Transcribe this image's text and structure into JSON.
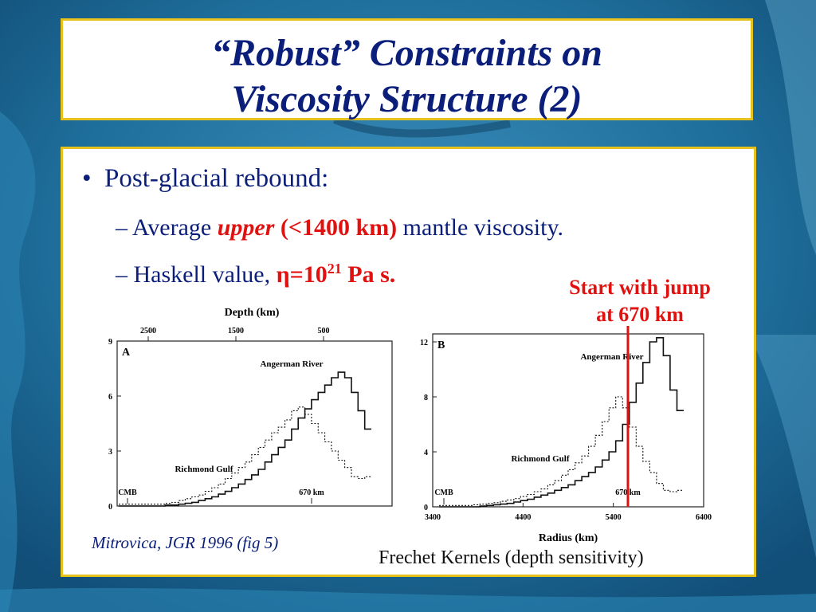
{
  "slide": {
    "title_line1": "“Robust” Constraints on",
    "title_line2": "Viscosity Structure (2)",
    "bullet": "Post-glacial rebound:",
    "sub1": {
      "dash": "– ",
      "pre": "Average ",
      "em": "upper",
      "paren": "(<1400 km)",
      "post": " mantle viscosity."
    },
    "sub2": {
      "dash": "– ",
      "pre": "Haskell value, ",
      "eta": "η",
      "eq": "=10",
      "exp": "21",
      "unit": " Pa s."
    },
    "note_line1": "Start with jump",
    "note_line2": "at 670 km",
    "citation": "Mitrovica, JGR 1996 (fig 5)",
    "caption": "Frechet Kernels (depth sensitivity)"
  },
  "colors": {
    "title": "#0a1e7a",
    "accent": "#e0110f",
    "border": "#e8c21c"
  },
  "chart_data": [
    {
      "type": "line",
      "panel": "A",
      "top_axis_label": "Depth (km)",
      "top_ticks": [
        "2500",
        "1500",
        "500"
      ],
      "y_ticks": [
        "9",
        "6",
        "3",
        "0"
      ],
      "ylim": [
        0,
        9
      ],
      "annotations": [
        "CMB",
        "670 km"
      ],
      "series": [
        {
          "name": "Angerman River",
          "style": "solid",
          "values": [
            0,
            0,
            0,
            0,
            0,
            0,
            0,
            0.05,
            0.05,
            0.1,
            0.15,
            0.2,
            0.3,
            0.4,
            0.5,
            0.65,
            0.8,
            1.0,
            1.2,
            1.45,
            1.7,
            2.0,
            2.4,
            2.8,
            3.2,
            3.6,
            4.2,
            4.8,
            5.3,
            5.8,
            6.2,
            6.6,
            7.0,
            7.3,
            7.0,
            6.2,
            5.2,
            4.2
          ]
        },
        {
          "name": "Richmond Gulf",
          "style": "dotted",
          "values": [
            0.1,
            0.1,
            0.1,
            0.1,
            0.1,
            0.1,
            0.1,
            0.15,
            0.2,
            0.3,
            0.4,
            0.5,
            0.6,
            0.8,
            1.0,
            1.2,
            1.5,
            1.8,
            2.1,
            2.4,
            2.8,
            3.2,
            3.6,
            4.0,
            4.3,
            4.7,
            5.2,
            5.4,
            5.0,
            4.5,
            4.0,
            3.5,
            3.0,
            2.5,
            2.1,
            1.6,
            1.5,
            1.6
          ]
        }
      ]
    },
    {
      "type": "line",
      "panel": "B",
      "xlabel": "Radius (km)",
      "x_ticks": [
        "3400",
        "4400",
        "5400",
        "6400"
      ],
      "y_ticks": [
        "12",
        "8",
        "4",
        "0"
      ],
      "xlim": [
        3400,
        6400
      ],
      "ylim": [
        0,
        12
      ],
      "annotations": [
        "CMB",
        "670 km"
      ],
      "series": [
        {
          "name": "Angerman River",
          "style": "solid",
          "values": [
            0,
            0,
            0,
            0,
            0,
            0,
            0.05,
            0.1,
            0.15,
            0.2,
            0.25,
            0.35,
            0.45,
            0.55,
            0.7,
            0.85,
            1.0,
            1.2,
            1.4,
            1.6,
            1.9,
            2.2,
            2.5,
            2.9,
            3.4,
            4.0,
            4.8,
            6.0,
            7.6,
            9.0,
            10.5,
            12.0,
            12.3,
            11.0,
            8.5,
            7.0
          ]
        },
        {
          "name": "Richmond Gulf",
          "style": "dotted",
          "values": [
            0.1,
            0.1,
            0.1,
            0.1,
            0.1,
            0.15,
            0.2,
            0.25,
            0.3,
            0.4,
            0.5,
            0.6,
            0.75,
            0.9,
            1.1,
            1.3,
            1.6,
            1.9,
            2.3,
            2.7,
            3.2,
            3.7,
            4.4,
            5.2,
            6.2,
            7.2,
            8.0,
            7.2,
            5.8,
            4.4,
            3.3,
            2.5,
            1.7,
            1.2,
            1.1,
            1.2
          ]
        }
      ]
    }
  ]
}
